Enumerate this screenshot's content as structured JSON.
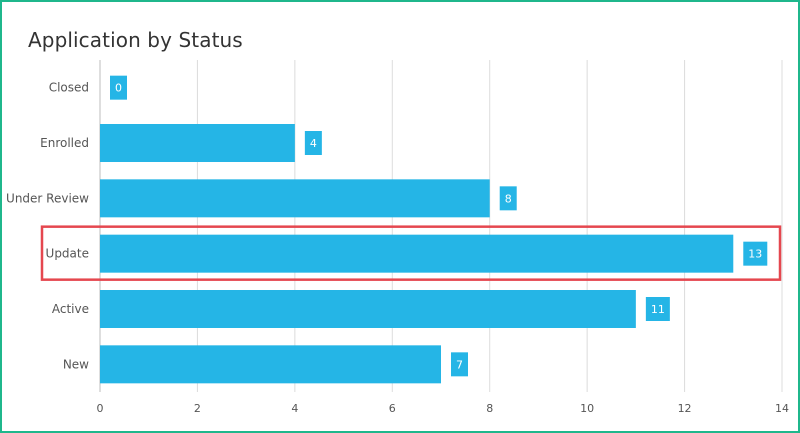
{
  "chart_data": {
    "type": "bar",
    "orientation": "horizontal",
    "title": "Application by Status",
    "categories": [
      "Closed",
      "Enrolled",
      "Under Review",
      "Update",
      "Active",
      "New"
    ],
    "values": [
      0,
      4,
      8,
      13,
      11,
      7
    ],
    "xlim": [
      0,
      14
    ],
    "xticks": [
      0,
      2,
      4,
      6,
      8,
      10,
      12,
      14
    ],
    "grid": true,
    "bar_color": "#25b5e6",
    "highlighted_category": "Update",
    "highlight_color": "#e5474f"
  }
}
